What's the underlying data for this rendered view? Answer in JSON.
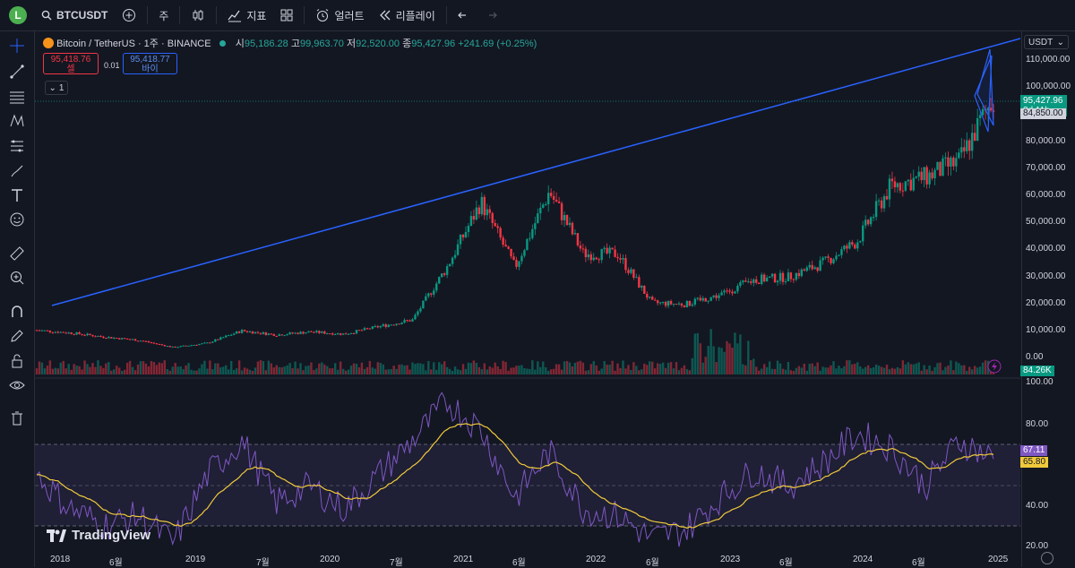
{
  "toolbar": {
    "avatar_letter": "L",
    "symbol": "BTCUSDT",
    "interval": "주",
    "indicators_label": "지표",
    "alert_label": "얼러트",
    "replay_label": "리플레이"
  },
  "legend": {
    "title": "Bitcoin / TetherUS · 1주 · BINANCE",
    "open_label": "시",
    "open": "95,186.28",
    "high_label": "고",
    "high": "99,963.70",
    "low_label": "저",
    "low": "92,520.00",
    "close_label": "종",
    "close": "95,427.96",
    "change": "+241.69 (+0.25%)"
  },
  "order": {
    "sell_price": "95,418.76",
    "sell_label": "셀",
    "spread": "0.01",
    "buy_price": "95,418.77",
    "buy_label": "바이",
    "collapse_count": "1"
  },
  "price_axis": {
    "currency": "USDT",
    "labels": [
      "110,000.00",
      "100,000.00",
      "90,000.00",
      "80,000.00",
      "70,000.00",
      "60,000.00",
      "50,000.00",
      "40,000.00",
      "30,000.00",
      "20,000.00",
      "10,000.00",
      "0.00"
    ],
    "current_price": "95,427.96",
    "countdown": "3d 11h",
    "line_price": "84,850.00",
    "volume": "84.26K"
  },
  "rsi_axis": {
    "labels": [
      "100.00",
      "80.00",
      "40.00",
      "20.00"
    ],
    "rsi_value": "67.11",
    "ma_value": "65.80"
  },
  "time_axis": [
    "2018",
    "6월",
    "2019",
    "7월",
    "2020",
    "7월",
    "2021",
    "6월",
    "2022",
    "6월",
    "2023",
    "6월",
    "2024",
    "6월",
    "2025"
  ],
  "brand": "TradingView",
  "colors": {
    "up": "#089981",
    "down": "#f23645",
    "trendline": "#2962ff",
    "rsi": "#7e57c2",
    "rsi_ma": "#f0c93b"
  },
  "chart_data": {
    "type": "candlestick",
    "x": [
      "2018-01",
      "2018-04",
      "2018-07",
      "2018-10",
      "2019-01",
      "2019-04",
      "2019-07",
      "2019-10",
      "2020-01",
      "2020-04",
      "2020-07",
      "2020-10",
      "2021-01",
      "2021-04",
      "2021-07",
      "2021-10",
      "2022-01",
      "2022-04",
      "2022-07",
      "2022-10",
      "2023-01",
      "2023-04",
      "2023-07",
      "2023-10",
      "2024-01",
      "2024-04",
      "2024-07",
      "2024-10",
      "2024-12"
    ],
    "close": [
      10000,
      9000,
      7500,
      6300,
      3700,
      5300,
      9800,
      8300,
      9400,
      8600,
      11300,
      13800,
      33000,
      57000,
      33000,
      61000,
      38000,
      38000,
      20000,
      19500,
      23000,
      28500,
      29500,
      34500,
      42500,
      63000,
      66000,
      72000,
      95427.96
    ],
    "y_range": [
      0,
      115000
    ],
    "rsi": [
      60,
      45,
      38,
      42,
      30,
      60,
      75,
      48,
      55,
      45,
      60,
      75,
      92,
      80,
      50,
      70,
      45,
      42,
      32,
      36,
      50,
      62,
      55,
      65,
      78,
      72,
      55,
      75,
      67.11
    ]
  }
}
